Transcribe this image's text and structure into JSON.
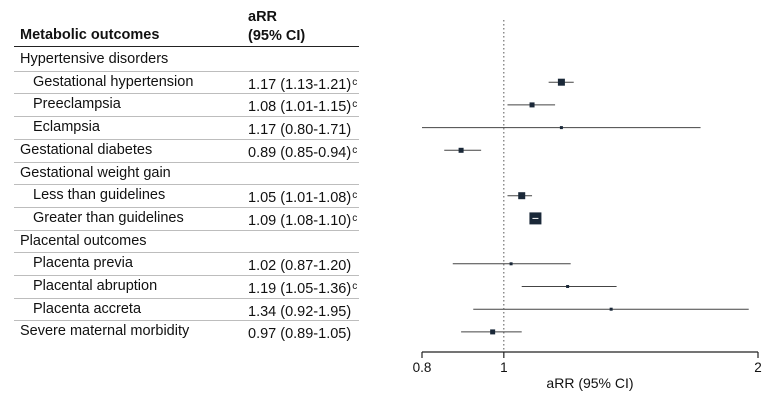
{
  "table": {
    "header_outcome": "Metabolic outcomes",
    "header_arr_line1": "aRR",
    "header_arr_line2": "(95% CI)",
    "rows": [
      {
        "label": "Hypertensive disorders",
        "value": "",
        "sup": ""
      },
      {
        "label": "Gestational hypertension",
        "value": "1.17 (1.13-1.21)",
        "sup": "c"
      },
      {
        "label": "Preeclampsia",
        "value": "1.08 (1.01-1.15)",
        "sup": "c"
      },
      {
        "label": "Eclampsia",
        "value": "1.17 (0.80-1.71)",
        "sup": ""
      },
      {
        "label": "Gestational diabetes",
        "value": "0.89 (0.85-0.94)",
        "sup": "c"
      },
      {
        "label": "Gestational weight gain",
        "value": "",
        "sup": ""
      },
      {
        "label": "Less than guidelines",
        "value": "1.05 (1.01-1.08)",
        "sup": "c"
      },
      {
        "label": "Greater than guidelines",
        "value": "1.09 (1.08-1.10)",
        "sup": "c"
      },
      {
        "label": "Placental outcomes",
        "value": "",
        "sup": ""
      },
      {
        "label": "Placenta previa",
        "value": "1.02 (0.87-1.20)",
        "sup": ""
      },
      {
        "label": "Placental abruption",
        "value": "1.19 (1.05-1.36)",
        "sup": "c"
      },
      {
        "label": "Placenta accreta",
        "value": "1.34 (0.92-1.95)",
        "sup": ""
      },
      {
        "label": "Severe maternal morbidity",
        "value": "0.97 (0.89-1.05)",
        "sup": ""
      }
    ]
  },
  "chart_data": {
    "type": "forest",
    "xlabel": "aRR (95% CI)",
    "xscale": "log",
    "xlim": [
      0.8,
      2
    ],
    "xticks": [
      "0.8",
      "1",
      "2"
    ],
    "reference_line": 1,
    "colors": {
      "marker": "#1a2838",
      "line": "#444444"
    },
    "points": [
      {
        "row": 1,
        "name": "Gestational hypertension",
        "estimate": 1.17,
        "lower": 1.13,
        "upper": 1.21,
        "weight": 3
      },
      {
        "row": 2,
        "name": "Preeclampsia",
        "estimate": 1.08,
        "lower": 1.01,
        "upper": 1.15,
        "weight": 2
      },
      {
        "row": 3,
        "name": "Eclampsia",
        "estimate": 1.17,
        "lower": 0.8,
        "upper": 1.71,
        "weight": 1
      },
      {
        "row": 4,
        "name": "Gestational diabetes",
        "estimate": 0.89,
        "lower": 0.85,
        "upper": 0.94,
        "weight": 2
      },
      {
        "row": 6,
        "name": "Less than guidelines",
        "estimate": 1.05,
        "lower": 1.01,
        "upper": 1.08,
        "weight": 3
      },
      {
        "row": 7,
        "name": "Greater than guidelines",
        "estimate": 1.09,
        "lower": 1.08,
        "upper": 1.1,
        "weight": 5
      },
      {
        "row": 9,
        "name": "Placenta previa",
        "estimate": 1.02,
        "lower": 0.87,
        "upper": 1.2,
        "weight": 1
      },
      {
        "row": 10,
        "name": "Placental abruption",
        "estimate": 1.19,
        "lower": 1.05,
        "upper": 1.36,
        "weight": 1
      },
      {
        "row": 11,
        "name": "Placenta accreta",
        "estimate": 1.34,
        "lower": 0.92,
        "upper": 1.95,
        "weight": 1
      },
      {
        "row": 12,
        "name": "Severe maternal morbidity",
        "estimate": 0.97,
        "lower": 0.89,
        "upper": 1.05,
        "weight": 2
      }
    ]
  }
}
